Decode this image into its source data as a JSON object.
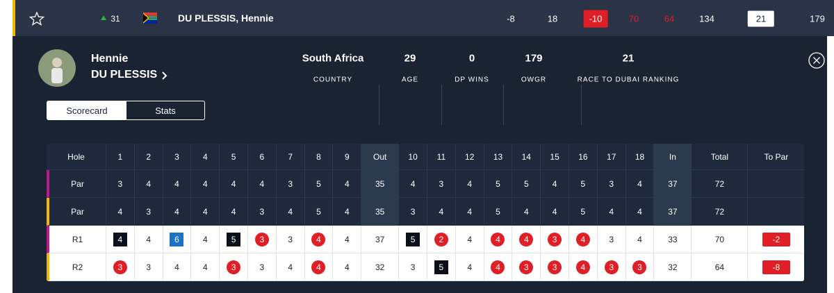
{
  "top_row": {
    "position_change": 31,
    "name": "DU PLESSIS, Hennie",
    "values": [
      -8,
      18,
      -10,
      70,
      64,
      134,
      21,
      179
    ]
  },
  "player": {
    "first_name": "Hennie",
    "last_name": "DU PLESSIS",
    "stats": [
      {
        "value": "South Africa",
        "label": "COUNTRY"
      },
      {
        "value": 29,
        "label": "AGE"
      },
      {
        "value": 0,
        "label": "DP WINS"
      },
      {
        "value": 179,
        "label": "OWGR"
      },
      {
        "value": 21,
        "label": "RACE TO DUBAI RANKING"
      }
    ]
  },
  "tabs": [
    "Scorecard",
    "Stats"
  ],
  "scorecard": {
    "header": [
      "Hole",
      "1",
      "2",
      "3",
      "4",
      "5",
      "6",
      "7",
      "8",
      "9",
      "Out",
      "10",
      "11",
      "12",
      "13",
      "14",
      "15",
      "16",
      "17",
      "18",
      "In",
      "Total",
      "To Par"
    ],
    "rows": [
      [
        "Par",
        3,
        4,
        4,
        4,
        4,
        4,
        3,
        5,
        4,
        35,
        4,
        3,
        4,
        5,
        5,
        4,
        5,
        3,
        4,
        37,
        72
      ],
      [
        "Par",
        4,
        3,
        4,
        4,
        4,
        3,
        4,
        5,
        4,
        35,
        3,
        4,
        4,
        5,
        4,
        4,
        5,
        4,
        4,
        37,
        72
      ],
      [
        "R1",
        4,
        4,
        6,
        4,
        5,
        3,
        3,
        4,
        4,
        37,
        5,
        2,
        4,
        4,
        4,
        3,
        4,
        3,
        4,
        33,
        70,
        -2
      ],
      [
        "R2",
        3,
        3,
        4,
        4,
        3,
        3,
        4,
        4,
        4,
        32,
        3,
        5,
        4,
        4,
        3,
        3,
        4,
        3,
        3,
        32,
        64,
        -8
      ]
    ]
  }
}
